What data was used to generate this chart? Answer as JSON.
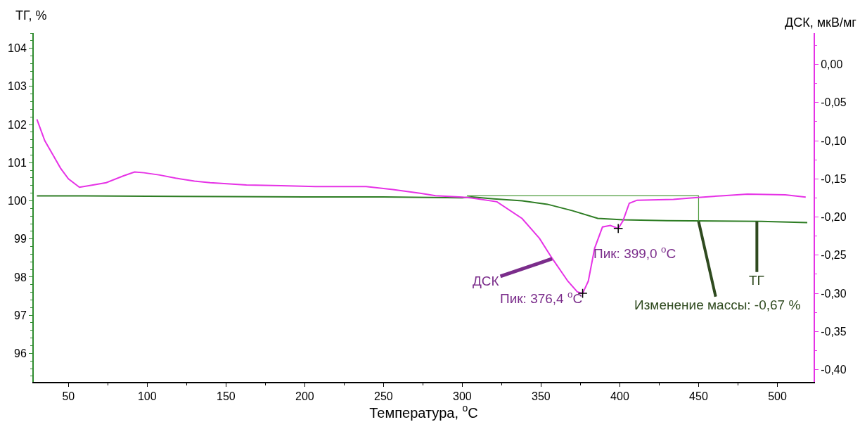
{
  "chart_data": {
    "type": "line",
    "xlabel": "Температура, $^{o}$C",
    "ylabel": "ТГ, %",
    "y2label": "ДСК, мкВ/мг",
    "xlim": [
      28,
      523
    ],
    "xticks": [
      50,
      100,
      150,
      200,
      250,
      300,
      350,
      400,
      450,
      500
    ],
    "ylim": [
      95.25,
      104.4
    ],
    "yticks": [
      96,
      97,
      98,
      99,
      100,
      101,
      102,
      103,
      104
    ],
    "y2lim": [
      -0.416,
      0.041
    ],
    "y2ticks": [
      {
        "value": 0,
        "label": "0,00"
      },
      {
        "value": -0.05,
        "label": "-0,05"
      },
      {
        "value": -0.1,
        "label": "-0,10"
      },
      {
        "value": -0.15,
        "label": "-0,15"
      },
      {
        "value": -0.2,
        "label": "-0,20"
      },
      {
        "value": -0.25,
        "label": "-0,25"
      },
      {
        "value": -0.3,
        "label": "-0,30"
      },
      {
        "value": -0.35,
        "label": "-0,35"
      },
      {
        "value": -0.4,
        "label": "-0,40"
      }
    ],
    "series": [
      {
        "type": "line",
        "axis": "y2",
        "color": "#e632e6",
        "x": [
          30,
          35,
          40,
          45,
          50,
          57,
          63,
          74,
          85,
          92,
          98,
          108,
          118,
          130,
          140,
          163,
          185,
          207,
          239,
          256,
          274,
          283,
          300,
          306,
          322,
          338,
          349,
          357,
          367,
          373,
          376.4,
          380,
          384,
          389,
          394,
          399,
          402,
          406,
          411,
          434,
          445,
          466,
          481,
          505,
          518
        ],
        "values": [
          -0.072,
          -0.1,
          -0.118,
          -0.136,
          -0.15,
          -0.161,
          -0.159,
          -0.155,
          -0.146,
          -0.141,
          -0.142,
          -0.145,
          -0.149,
          -0.153,
          -0.155,
          -0.158,
          -0.159,
          -0.16,
          -0.16,
          -0.164,
          -0.169,
          -0.172,
          -0.174,
          -0.175,
          -0.18,
          -0.202,
          -0.228,
          -0.254,
          -0.284,
          -0.298,
          -0.3,
          -0.284,
          -0.241,
          -0.213,
          -0.211,
          -0.215,
          -0.205,
          -0.182,
          -0.178,
          -0.177,
          -0.175,
          -0.172,
          -0.17,
          -0.171,
          -0.174
        ]
      },
      {
        "type": "line",
        "color": "#2e7d24",
        "x": [
          30,
          60,
          100,
          150,
          200,
          250,
          300,
          306,
          320,
          338,
          354,
          370,
          386,
          402,
          430,
          460,
          490,
          519
        ],
        "values": [
          100.13,
          100.13,
          100.12,
          100.11,
          100.1,
          100.1,
          100.08,
          100.1,
          100.05,
          100.0,
          99.91,
          99.74,
          99.54,
          99.5,
          99.48,
          99.47,
          99.46,
          99.43
        ]
      },
      {
        "type": "line",
        "color": "#4a9a3a",
        "x": [
          303,
          450,
          450
        ],
        "values": [
          100.13,
          100.13,
          99.46
        ]
      },
      {
        "type": "scatter",
        "marker": "cross",
        "axis": "y2",
        "color": "#000000",
        "x": [
          376.4,
          399.0
        ],
        "values": [
          -0.3,
          -0.215
        ]
      }
    ],
    "annotations": [
      {
        "text": "ДСК",
        "x": 357,
        "y": 98.48
      },
      {
        "text": "ТГ",
        "x": 487,
        "y": 99.46
      },
      "Пик: 376,4 $^{o}$C",
      "Пик: 399,0 $^{o}$C",
      {
        "text": "Изменение массы: -0,67 %",
        "x": 450,
        "y": 99.46
      }
    ]
  }
}
